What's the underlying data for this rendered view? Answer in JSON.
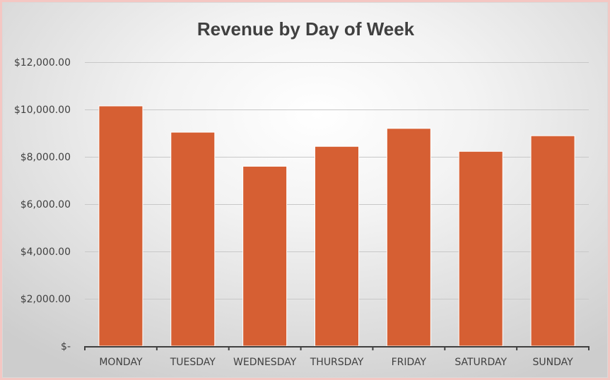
{
  "chart_data": {
    "type": "bar",
    "title": "Revenue by Day of Week",
    "xlabel": "",
    "ylabel": "",
    "categories": [
      "MONDAY",
      "TUESDAY",
      "WEDNESDAY",
      "THURSDAY",
      "FRIDAY",
      "SATURDAY",
      "SUNDAY"
    ],
    "values": [
      10150,
      9040,
      7600,
      8440,
      9200,
      8230,
      8890
    ],
    "ylim": [
      0,
      12000
    ],
    "yticks": [
      0,
      2000,
      4000,
      6000,
      8000,
      10000,
      12000
    ],
    "ytick_labels": [
      "$-",
      "$2,000.00",
      "$4,000.00",
      "$6,000.00",
      "$8,000.00",
      "$10,000.00",
      "$12,000.00"
    ],
    "grid": true,
    "legend": "none",
    "colors": {
      "bar": "#d65f33",
      "bar_edge": "#ffffff",
      "grid": "#c8c8c8",
      "axis": "#404040",
      "text": "#404040"
    }
  }
}
